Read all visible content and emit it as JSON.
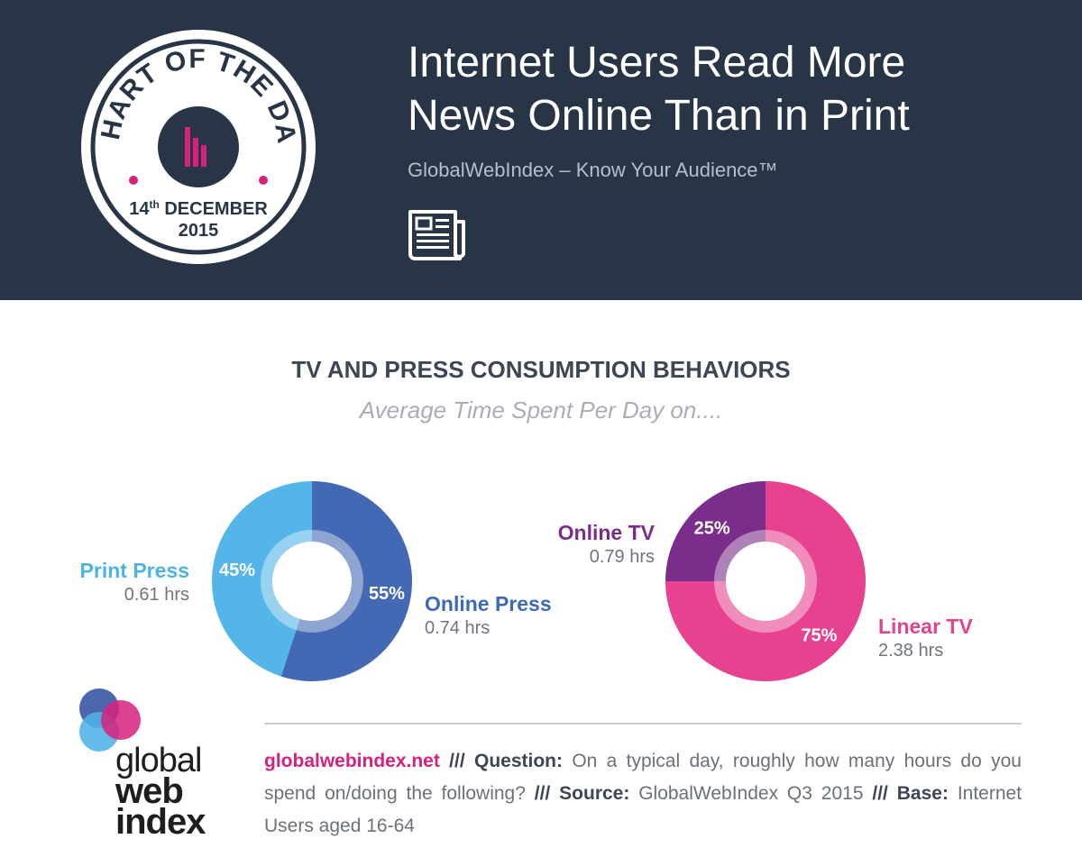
{
  "header": {
    "badge_top_text": "CHART OF THE DAY",
    "badge_date_day": "14",
    "badge_date_suffix": "th",
    "badge_date_month": "DECEMBER",
    "badge_date_year": "2015",
    "title_line1": "Internet Users Read More",
    "title_line2": "News Online Than in Print",
    "subtitle": "GlobalWebIndex – Know Your Audience™",
    "icon": "newspaper-icon"
  },
  "chart_heading": "TV AND PRESS CONSUMPTION BEHAVIORS",
  "chart_subheading": "Average Time Spent Per Day on....",
  "chart_data": [
    {
      "type": "pie",
      "categories": [
        "Online Press",
        "Print Press"
      ],
      "values": [
        55,
        45
      ],
      "labels": [
        "55%",
        "45%"
      ],
      "hours": [
        "0.74 hrs",
        "0.61 hrs"
      ],
      "colors": [
        "#4369b4",
        "#53b5e8"
      ]
    },
    {
      "type": "pie",
      "categories": [
        "Linear TV",
        "Online TV"
      ],
      "values": [
        75,
        25
      ],
      "labels": [
        "75%",
        "25%"
      ],
      "hours": [
        "2.38 hrs",
        "0.79 hrs"
      ],
      "colors": [
        "#e8418f",
        "#7b2d8b"
      ]
    }
  ],
  "logo": {
    "line1": "global",
    "line2": "web",
    "line3": "index",
    "colors": [
      "#3e5aa8",
      "#4db3e6",
      "#d6217d"
    ]
  },
  "footer": {
    "site": "globalwebindex.net",
    "sep": "///",
    "question_label": "Question:",
    "question_text": "On a typical day, roughly how many hours do you spend on/doing the following?",
    "source_label": "Source:",
    "source_text": "GlobalWebIndex Q3 2015",
    "base_label": "Base:",
    "base_text": "Internet Users aged 16-64"
  },
  "colors": {
    "header_bg": "#283546",
    "accent_pink": "#d6217d"
  }
}
